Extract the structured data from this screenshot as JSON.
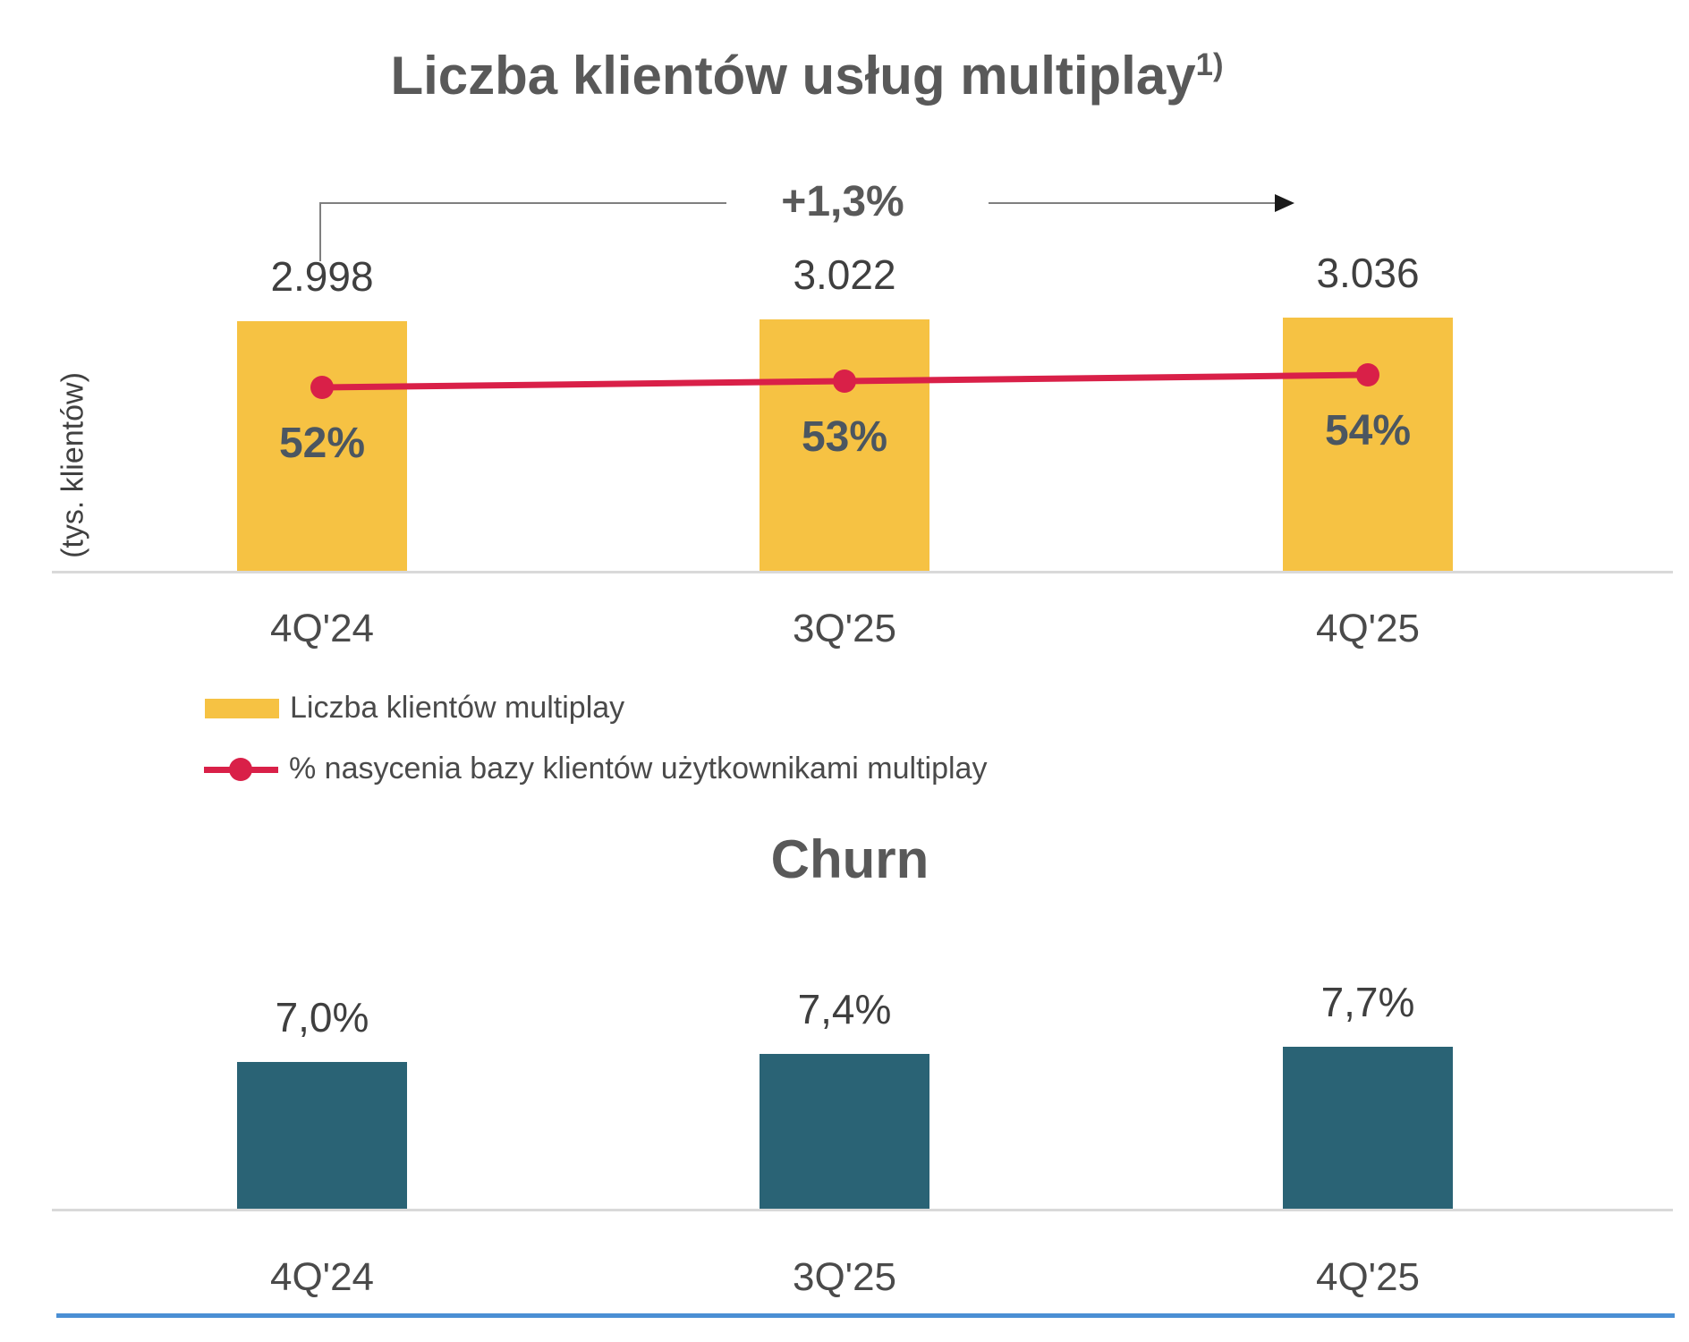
{
  "colors": {
    "bar_yellow": "#F6C243",
    "line_red": "#D92048",
    "bar_teal": "#2A6375",
    "title_gray": "#595959",
    "value_label_gray": "#3F3F3F",
    "axis_label_gray": "#4A4A4A",
    "saturation_label_slate": "#4B5661",
    "baseline_gray": "#D9D9D9",
    "annotation_line_gray": "#7F7F7F",
    "footer_blue": "#4A8FD4"
  },
  "chart_data": [
    {
      "type": "bar",
      "title": "Liczba klientów usług multiplay",
      "title_superscript": "1)",
      "ylabel": "(tys. klientów)",
      "xlabel": "",
      "categories": [
        "4Q'24",
        "3Q'25",
        "4Q'25"
      ],
      "series": [
        {
          "name": "Liczba klientów multiplay",
          "type": "bar",
          "color": "#F6C243",
          "values": [
            2998,
            3022,
            3036
          ],
          "value_labels": [
            "2.998",
            "3.022",
            "3.036"
          ]
        },
        {
          "name": "% nasycenia bazy klientów użytkownikami multiplay",
          "type": "line",
          "color": "#D92048",
          "values": [
            52,
            53,
            54
          ],
          "value_labels": [
            "52%",
            "53%",
            "54%"
          ]
        }
      ],
      "annotation": {
        "label": "+1,3%",
        "from": "4Q'24",
        "to": "4Q'25"
      },
      "legend_position": "bottom-left",
      "grid": false
    },
    {
      "type": "bar",
      "title": "Churn",
      "xlabel": "",
      "categories": [
        "4Q'24",
        "3Q'25",
        "4Q'25"
      ],
      "series": [
        {
          "name": "Churn",
          "type": "bar",
          "color": "#2A6375",
          "values": [
            7.0,
            7.4,
            7.7
          ],
          "value_labels": [
            "7,0%",
            "7,4%",
            "7,7%"
          ]
        }
      ],
      "grid": false
    }
  ]
}
